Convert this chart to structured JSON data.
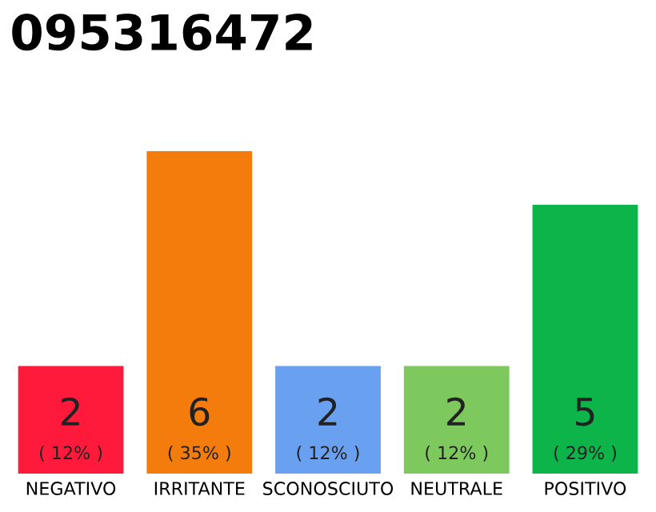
{
  "chart_data": {
    "type": "bar",
    "title": "095316472",
    "categories": [
      "NEGATIVO",
      "IRRITANTE",
      "SCONOSCIUTO",
      "NEUTRALE",
      "POSITIVO"
    ],
    "values": [
      2,
      6,
      2,
      2,
      5
    ],
    "colors": [
      "#ff1a3c",
      "#f47c0c",
      "#6aa0f0",
      "#7dc95e",
      "#0cb44a"
    ],
    "ylim": [
      0,
      6
    ],
    "tick_labels": "x",
    "grid": false,
    "legend": false,
    "data_labels": true,
    "annotations": [
      "( 12% )",
      "( 35% )",
      "( 12% )",
      "( 12% )",
      "( 29% )"
    ]
  }
}
